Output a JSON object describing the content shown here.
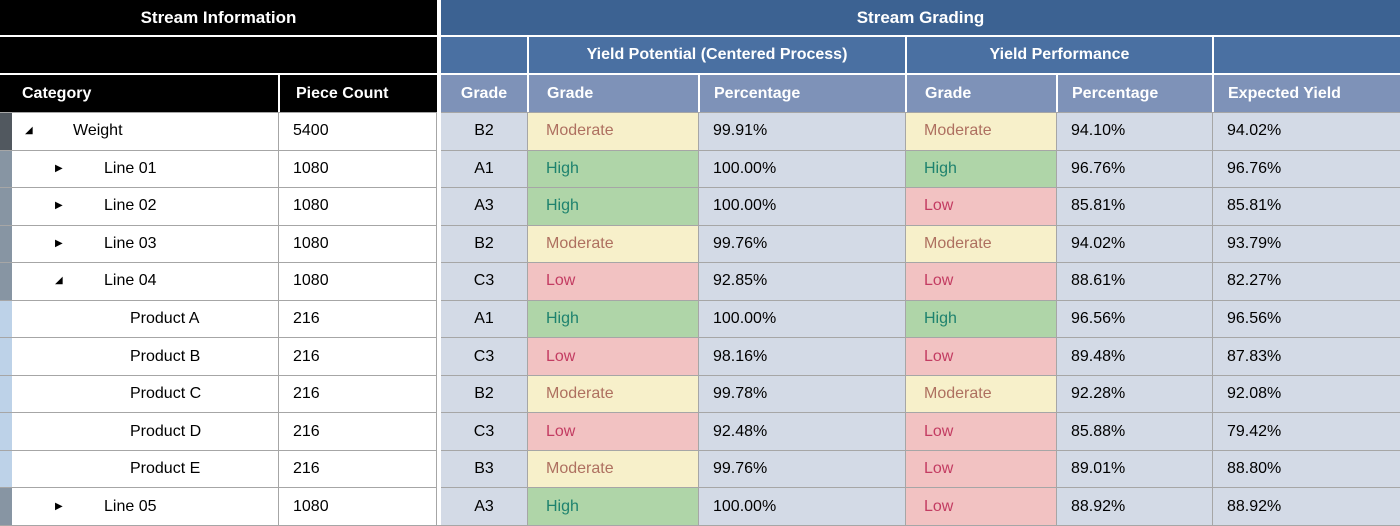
{
  "left_table": {
    "title": "Stream Information",
    "category_header": "Category",
    "piece_count_header": "Piece Count"
  },
  "right_table": {
    "title": "Stream Grading",
    "yield_potential_header": "Yield Potential (Centered Process)",
    "yield_performance_header": "Yield Performance",
    "grade_col_header": "Grade",
    "yp_grade_header": "Grade",
    "yp_pct_header": "Percentage",
    "perf_grade_header": "Grade",
    "perf_pct_header": "Percentage",
    "expected_header": "Expected Yield"
  },
  "icons": {
    "expanded": "◢",
    "collapsed": "▶"
  },
  "rows": [
    {
      "category": "Weight",
      "level": 0,
      "toggle": "expanded",
      "piece_count": "5400",
      "grade": "B2",
      "yp_grade": "Moderate",
      "yp_pct": "99.91%",
      "perf_grade": "Moderate",
      "perf_pct": "94.10%",
      "expected": "94.02%"
    },
    {
      "category": "Line 01",
      "level": 1,
      "toggle": "collapsed",
      "piece_count": "1080",
      "grade": "A1",
      "yp_grade": "High",
      "yp_pct": "100.00%",
      "perf_grade": "High",
      "perf_pct": "96.76%",
      "expected": "96.76%"
    },
    {
      "category": "Line 02",
      "level": 1,
      "toggle": "collapsed",
      "piece_count": "1080",
      "grade": "A3",
      "yp_grade": "High",
      "yp_pct": "100.00%",
      "perf_grade": "Low",
      "perf_pct": "85.81%",
      "expected": "85.81%"
    },
    {
      "category": "Line 03",
      "level": 1,
      "toggle": "collapsed",
      "piece_count": "1080",
      "grade": "B2",
      "yp_grade": "Moderate",
      "yp_pct": "99.76%",
      "perf_grade": "Moderate",
      "perf_pct": "94.02%",
      "expected": "93.79%"
    },
    {
      "category": "Line 04",
      "level": 1,
      "toggle": "expanded",
      "piece_count": "1080",
      "grade": "C3",
      "yp_grade": "Low",
      "yp_pct": "92.85%",
      "perf_grade": "Low",
      "perf_pct": "88.61%",
      "expected": "82.27%"
    },
    {
      "category": "Product A",
      "level": 2,
      "toggle": "none",
      "piece_count": "216",
      "grade": "A1",
      "yp_grade": "High",
      "yp_pct": "100.00%",
      "perf_grade": "High",
      "perf_pct": "96.56%",
      "expected": "96.56%"
    },
    {
      "category": "Product B",
      "level": 2,
      "toggle": "none",
      "piece_count": "216",
      "grade": "C3",
      "yp_grade": "Low",
      "yp_pct": "98.16%",
      "perf_grade": "Low",
      "perf_pct": "89.48%",
      "expected": "87.83%"
    },
    {
      "category": "Product C",
      "level": 2,
      "toggle": "none",
      "piece_count": "216",
      "grade": "B2",
      "yp_grade": "Moderate",
      "yp_pct": "99.78%",
      "perf_grade": "Moderate",
      "perf_pct": "92.28%",
      "expected": "92.08%"
    },
    {
      "category": "Product D",
      "level": 2,
      "toggle": "none",
      "piece_count": "216",
      "grade": "C3",
      "yp_grade": "Low",
      "yp_pct": "92.48%",
      "perf_grade": "Low",
      "perf_pct": "85.88%",
      "expected": "79.42%"
    },
    {
      "category": "Product E",
      "level": 2,
      "toggle": "none",
      "piece_count": "216",
      "grade": "B3",
      "yp_grade": "Moderate",
      "yp_pct": "99.76%",
      "perf_grade": "Low",
      "perf_pct": "89.01%",
      "expected": "88.80%"
    },
    {
      "category": "Line 05",
      "level": 1,
      "toggle": "collapsed",
      "piece_count": "1080",
      "grade": "A3",
      "yp_grade": "High",
      "yp_pct": "100.00%",
      "perf_grade": "Low",
      "perf_pct": "88.92%",
      "expected": "88.92%"
    }
  ],
  "colors": {
    "header_dark_blue": "#3C6292",
    "header_medium_blue": "#4A70A2",
    "header_light_blue": "#7E92B8",
    "cell_blue_gray": "#D3DAE6",
    "grid_line": "#A6A6A6",
    "left_header_black": "#000000",
    "grade_high_bg": "#AFD5A8",
    "grade_high_text": "#1E826E",
    "grade_moderate_bg": "#F7F0CA",
    "grade_moderate_text": "#AE7060",
    "grade_low_bg": "#F2C2C2",
    "grade_low_text": "#C33C62",
    "indicator_root": "#51585F",
    "indicator_line": "#8795A3",
    "indicator_product": "#BDD2E8"
  }
}
